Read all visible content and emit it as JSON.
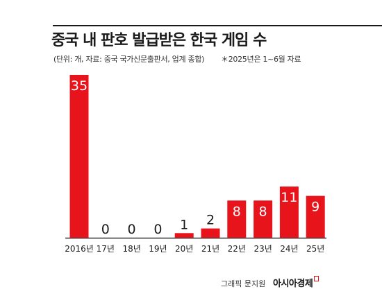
{
  "header": {
    "title": "중국 내 판호 발급받은 한국 게임 수",
    "subtitle": "(단위: 개, 자료: 중국 국가신문출판서, 업계 종합)",
    "note": "＊2025년은 1~6월 자료"
  },
  "footer": {
    "credit": "그래픽 문지원",
    "brand": "아시아경제"
  },
  "colors": {
    "bar": "#e8141c",
    "accent_label_bg": "#e8141c",
    "text": "#1a1a1a",
    "axis": "#333333"
  },
  "chart_data": {
    "type": "bar",
    "title": "중국 내 판호 발급받은 한국 게임 수",
    "categories": [
      "2016년",
      "17년",
      "18년",
      "19년",
      "20년",
      "21년",
      "22년",
      "23년",
      "24년",
      "25년"
    ],
    "values": [
      35,
      0,
      0,
      0,
      1,
      2,
      8,
      8,
      11,
      9
    ],
    "unit": "개",
    "ylim": [
      0,
      35
    ],
    "grid": false,
    "legend": "none"
  }
}
